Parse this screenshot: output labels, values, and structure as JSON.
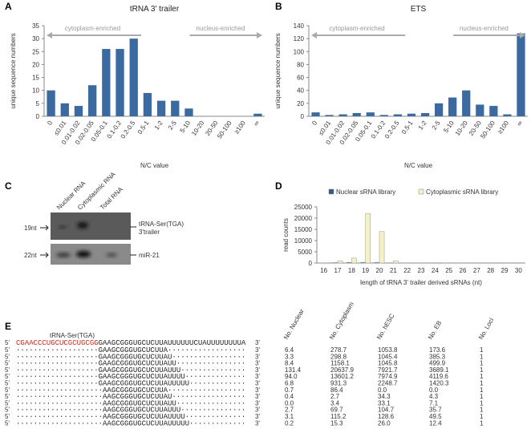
{
  "panel_labels": [
    "A",
    "B",
    "C",
    "D",
    "E"
  ],
  "chart_data": [
    {
      "type": "bar",
      "title": "tRNA 3' trailer",
      "categories": [
        "0",
        "≤0.01",
        "0.01-0.02",
        "0.02-0.05",
        "0.05-0.1",
        "0.1-0.2",
        "0.2-0.5",
        "0.5-1",
        "1-2",
        "2-5",
        "5-10",
        "10-20",
        "20-50",
        "50-100",
        "≥100",
        "∞"
      ],
      "values": [
        10,
        5,
        4,
        12,
        26,
        26,
        30,
        9,
        6,
        6,
        3,
        0,
        0,
        0,
        0,
        1
      ],
      "color": "#3b6aa0",
      "ylim": [
        0,
        35
      ],
      "yticks": [
        0,
        5,
        10,
        15,
        20,
        25,
        30,
        35
      ],
      "xlabel": "N/C value",
      "ylabel": "unique sequence numbers",
      "annotations": [
        "cytoplasm-enriched",
        "nucleus-enriched"
      ]
    },
    {
      "type": "bar",
      "title": "ETS",
      "categories": [
        "0",
        "≤0.01",
        "0.01-0.02",
        "0.02-0.05",
        "0.05-0.1",
        "0.1-0.2",
        "0.2-0.5",
        "0.5-1",
        "1-2",
        "2-5",
        "5-10",
        "10-20",
        "20-50",
        "50-100",
        "≥100",
        "∞"
      ],
      "values": [
        6,
        2,
        3,
        5,
        6,
        2,
        3,
        4,
        5,
        20,
        29,
        40,
        18,
        16,
        3,
        128
      ],
      "color": "#3b6aa0",
      "ylim": [
        0,
        140
      ],
      "yticks": [
        0,
        20,
        40,
        60,
        80,
        100,
        120,
        140
      ],
      "xlabel": "N/C value",
      "ylabel": "unique sequence numbers",
      "annotations": [
        "cytoplasm-enriched",
        "nucleus-enriched"
      ]
    },
    {
      "type": "grouped_bar",
      "categories": [
        "16",
        "17",
        "18",
        "19",
        "20",
        "21",
        "22",
        "23",
        "24",
        "25",
        "26",
        "27",
        "28",
        "29",
        "30"
      ],
      "series": [
        {
          "name": "Nuclear sRNA library",
          "color": "#2e5a8a",
          "values": [
            100,
            200,
            300,
            300,
            300,
            0,
            100,
            100,
            0,
            100,
            50,
            0,
            0,
            0,
            0
          ]
        },
        {
          "name": "Cytoplasmic sRNA library",
          "color": "#f4f1c6",
          "values": [
            0,
            1000,
            2200,
            22000,
            14000,
            1000,
            0,
            0,
            0,
            0,
            0,
            0,
            0,
            0,
            0
          ]
        }
      ],
      "ylim": [
        0,
        25000
      ],
      "yticks": [
        0,
        5000,
        10000,
        15000,
        20000,
        25000
      ],
      "xlabel": "length of tRNA 3' trailer derived sRNAs (nt)",
      "ylabel": "read counts",
      "legend": "top"
    }
  ],
  "gel": {
    "lanes": [
      "Nuclear RNA",
      "Cytoplasmic RNA",
      "Total RNA"
    ],
    "sizes": [
      "19nt",
      "22nt"
    ],
    "targets": [
      "tRNA-Ser(TGA)",
      "3'trailer",
      "miR-21"
    ]
  },
  "table": {
    "name": "tRNA-Ser(TGA)",
    "five_prime": "5'",
    "three_prime": "3'",
    "reference": [
      "CGAACCCUGCUCGCUGCGG",
      "GAAGCGGGUGCUCUUAUUUUUUCUAUUUUUUUUA"
    ],
    "columns": [
      "No. Nuclear",
      "No. Cytoplasm",
      "No. hESC",
      "No. EB",
      "No. Loci"
    ],
    "rows": [
      {
        "seq": "···················GAAGCGGGUGCUCUUA··················",
        "values": [
          "6.4",
          "278.7",
          "1053.8",
          "173.6",
          "1"
        ]
      },
      {
        "seq": "···················GAAGCGGGUGCUCUUAU·················",
        "values": [
          "3.3",
          "298.8",
          "1045.4",
          "385.3",
          "1"
        ]
      },
      {
        "seq": "···················GAAGCGGGUGCUCUUAUU················",
        "values": [
          "8.4",
          "1158.1",
          "1045.8",
          "499.9",
          "1"
        ]
      },
      {
        "seq": "···················GAAGCGGGUGCUCUUAUUU···············",
        "values": [
          "131.4",
          "20637.9",
          "7921.7",
          "3689.1",
          "1"
        ]
      },
      {
        "seq": "···················GAAGCGGGUGCUCUUAUUUU··············",
        "values": [
          "94.0",
          "13601.2",
          "7974.9",
          "4119.6",
          "1"
        ]
      },
      {
        "seq": "···················GAAGCGGGUGCUCUUAUUUUU·············",
        "values": [
          "6.8",
          "931.3",
          "2248.7",
          "1420.3",
          "1"
        ]
      },
      {
        "seq": "····················AAGCGGGUGCUCUUA··················",
        "values": [
          "0.7",
          "86.4",
          "0.0",
          "0.0",
          "1"
        ]
      },
      {
        "seq": "····················AAGCGGGUGCUCUUAU·················",
        "values": [
          "0.4",
          "2.7",
          "34.3",
          "4.3",
          "1"
        ]
      },
      {
        "seq": "····················AAGCGGGUGCUCUUAUU················",
        "values": [
          "0.0",
          "3.4",
          "33.1",
          "7.1",
          "1"
        ]
      },
      {
        "seq": "····················AAGCGGGUGCUCUUAUUU···············",
        "values": [
          "2.7",
          "69.7",
          "104.7",
          "35.7",
          "1"
        ]
      },
      {
        "seq": "····················AAGCGGGUGCUCUUAUUUU··············",
        "values": [
          "3.1",
          "115.2",
          "128.6",
          "49.5",
          "1"
        ]
      },
      {
        "seq": "····················AAGCGGGUGCUCUUAUUUUU·············",
        "values": [
          "0.2",
          "15.3",
          "26.0",
          "12.4",
          "1"
        ]
      }
    ]
  }
}
